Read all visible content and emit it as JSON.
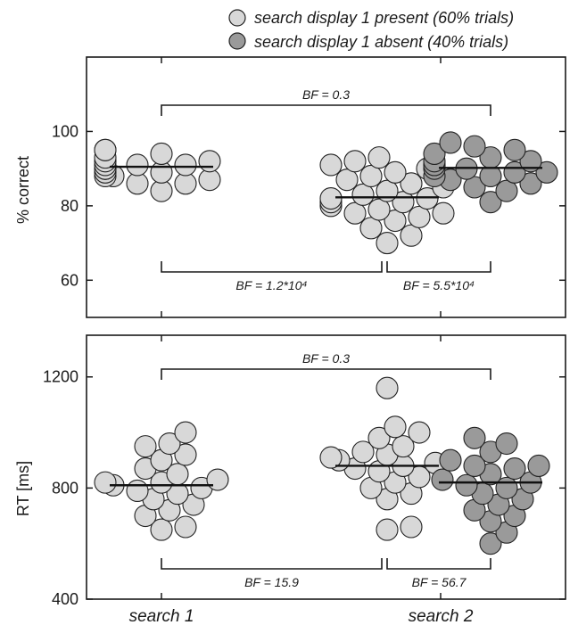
{
  "legend": [
    {
      "label": "search display 1 present (60% trials)",
      "color": "#d8d8d8"
    },
    {
      "label": "search display 1 absent (40% trials)",
      "color": "#9a9a9a"
    }
  ],
  "chart_data": [
    {
      "type": "scatter",
      "ylabel": "% correct",
      "ylim": [
        50,
        120
      ],
      "yticks": [
        60,
        80,
        100
      ],
      "categories": [
        "search 1",
        "search 2 (present)",
        "search 2 (absent)"
      ],
      "series": [
        {
          "name": "search display 1 present (60% trials)",
          "category": "search 1",
          "values": [
            84,
            86,
            86,
            87,
            88,
            88,
            89,
            89,
            90,
            90,
            90,
            91,
            91,
            91,
            92,
            92,
            93,
            94,
            95,
            95
          ],
          "mean": 90.5
        },
        {
          "name": "search display 1 present (60% trials)",
          "category": "search 2",
          "values": [
            70,
            72,
            74,
            76,
            77,
            78,
            78,
            79,
            80,
            81,
            81,
            82,
            82,
            83,
            84,
            85,
            86,
            87,
            88,
            89,
            90,
            91,
            92,
            93
          ],
          "mean": 82.3
        },
        {
          "name": "search display 1 absent (40% trials)",
          "category": "search 2",
          "values": [
            81,
            84,
            85,
            86,
            87,
            88,
            88,
            89,
            89,
            90,
            90,
            91,
            91,
            92,
            92,
            93,
            94,
            95,
            96,
            97
          ],
          "mean": 90.2
        }
      ],
      "annotations": [
        {
          "text": "BF = 0.3",
          "from": "search 1",
          "to": "search 2 (absent)",
          "position": "top"
        },
        {
          "text": "BF = 1.2*10⁴",
          "from": "search 1",
          "to": "search 2 (present)",
          "position": "bottom"
        },
        {
          "text": "BF = 5.5*10⁴",
          "from": "search 2 (present)",
          "to": "search 2 (absent)",
          "position": "bottom"
        }
      ]
    },
    {
      "type": "scatter",
      "ylabel": "RT [ms]",
      "ylim": [
        400,
        1350
      ],
      "yticks": [
        400,
        800,
        1200
      ],
      "categories": [
        "search 1",
        "search 2"
      ],
      "xtick_labels": [
        "search 1",
        "search 2"
      ],
      "series": [
        {
          "name": "search display 1 present (60% trials)",
          "category": "search 1",
          "values": [
            650,
            660,
            700,
            720,
            740,
            760,
            780,
            790,
            800,
            810,
            820,
            820,
            830,
            850,
            870,
            900,
            920,
            950,
            960,
            1000
          ],
          "mean": 810
        },
        {
          "name": "search display 1 present (60% trials)",
          "category": "search 2",
          "values": [
            650,
            660,
            760,
            780,
            800,
            820,
            840,
            860,
            870,
            880,
            890,
            900,
            910,
            920,
            930,
            950,
            980,
            1000,
            1020,
            1160
          ],
          "mean": 880
        },
        {
          "name": "search display 1 absent (40% trials)",
          "category": "search 2",
          "values": [
            600,
            640,
            680,
            700,
            720,
            740,
            760,
            780,
            800,
            810,
            820,
            830,
            850,
            870,
            880,
            880,
            900,
            930,
            960,
            980
          ],
          "mean": 820
        }
      ],
      "annotations": [
        {
          "text": "BF = 0.3",
          "from": "search 1",
          "to": "search 2 (absent)",
          "position": "top"
        },
        {
          "text": "BF = 15.9",
          "from": "search 1",
          "to": "search 2 (present)",
          "position": "bottom"
        },
        {
          "text": "BF = 56.7",
          "from": "search 2 (present)",
          "to": "search 2 (absent)",
          "position": "bottom"
        }
      ]
    }
  ]
}
